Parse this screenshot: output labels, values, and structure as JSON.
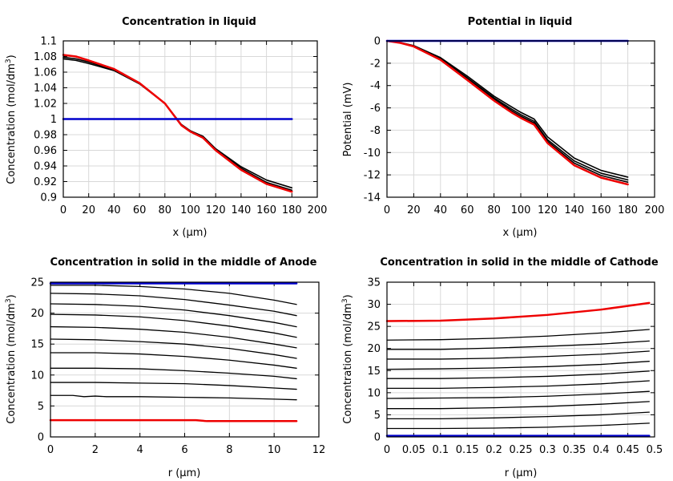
{
  "chart_data": [
    {
      "type": "line",
      "title": "Concentration in liquid",
      "xlabel": "x (µm)",
      "ylabel": "Concentration (mol/dm³)",
      "xlim": [
        0,
        200
      ],
      "ylim": [
        0.9,
        1.1
      ],
      "xticks": [
        0,
        20,
        40,
        60,
        80,
        100,
        120,
        140,
        160,
        180,
        200
      ],
      "yticks": [
        0.9,
        0.92,
        0.94,
        0.96,
        0.98,
        1,
        1.02,
        1.04,
        1.06,
        1.08,
        1.1
      ],
      "grid": true,
      "colors": {
        "initial": "#0000cc",
        "final": "#ee0000",
        "intermediate": "#000000"
      },
      "series": [
        {
          "role": "initial",
          "width": 2.5,
          "x": [
            0,
            180
          ],
          "y": [
            1.0,
            1.0
          ]
        },
        {
          "role": "intermediate",
          "width": 1.6,
          "x": [
            0,
            10,
            20,
            40,
            60,
            80,
            93,
            100,
            110,
            120,
            140,
            160,
            180
          ],
          "y": [
            1.077,
            1.075,
            1.071,
            1.062,
            1.045,
            1.02,
            0.993,
            0.985,
            0.978,
            0.962,
            0.939,
            0.922,
            0.912
          ]
        },
        {
          "role": "intermediate",
          "width": 1.6,
          "x": [
            0,
            10,
            20,
            40,
            60,
            80,
            93,
            100,
            110,
            120,
            140,
            160,
            180
          ],
          "y": [
            1.079,
            1.077,
            1.073,
            1.063,
            1.046,
            1.02,
            0.993,
            0.985,
            0.977,
            0.961,
            0.937,
            0.919,
            0.909
          ]
        },
        {
          "role": "final",
          "width": 2.5,
          "x": [
            0,
            10,
            20,
            40,
            60,
            80,
            93,
            100,
            110,
            120,
            140,
            160,
            180
          ],
          "y": [
            1.082,
            1.08,
            1.075,
            1.064,
            1.046,
            1.02,
            0.992,
            0.984,
            0.976,
            0.96,
            0.935,
            0.917,
            0.907
          ]
        }
      ]
    },
    {
      "type": "line",
      "title": "Potential in liquid",
      "xlabel": "x (µm)",
      "ylabel": "Potential (mV)",
      "xlim": [
        0,
        200
      ],
      "ylim": [
        -14,
        0
      ],
      "xticks": [
        0,
        20,
        40,
        60,
        80,
        100,
        120,
        140,
        160,
        180,
        200
      ],
      "yticks": [
        -14,
        -12,
        -10,
        -8,
        -6,
        -4,
        -2,
        0
      ],
      "grid": true,
      "colors": {
        "initial": "#0000cc",
        "final": "#ee0000",
        "intermediate": "#000000"
      },
      "series": [
        {
          "role": "initial",
          "width": 2.5,
          "x": [
            0,
            180
          ],
          "y": [
            0,
            0
          ]
        },
        {
          "role": "intermediate",
          "width": 1.6,
          "x": [
            0,
            10,
            20,
            40,
            60,
            80,
            93,
            100,
            110,
            120,
            140,
            160,
            180
          ],
          "y": [
            0,
            -0.15,
            -0.42,
            -1.5,
            -3.15,
            -4.95,
            -5.9,
            -6.4,
            -7.0,
            -8.6,
            -10.5,
            -11.6,
            -12.2
          ]
        },
        {
          "role": "intermediate",
          "width": 1.6,
          "x": [
            0,
            10,
            20,
            40,
            60,
            80,
            93,
            100,
            110,
            120,
            140,
            160,
            180
          ],
          "y": [
            0,
            -0.16,
            -0.45,
            -1.6,
            -3.3,
            -5.1,
            -6.1,
            -6.6,
            -7.2,
            -8.85,
            -10.75,
            -11.85,
            -12.45
          ]
        },
        {
          "role": "intermediate",
          "width": 1.6,
          "x": [
            0,
            10,
            20,
            40,
            60,
            80,
            93,
            100,
            110,
            120,
            140,
            160,
            180
          ],
          "y": [
            0,
            -0.17,
            -0.47,
            -1.65,
            -3.4,
            -5.2,
            -6.25,
            -6.75,
            -7.35,
            -9.0,
            -10.95,
            -12.05,
            -12.65
          ]
        },
        {
          "role": "final",
          "width": 2.5,
          "x": [
            0,
            10,
            20,
            40,
            60,
            80,
            93,
            100,
            110,
            120,
            140,
            160,
            180
          ],
          "y": [
            0,
            -0.18,
            -0.5,
            -1.7,
            -3.5,
            -5.35,
            -6.4,
            -6.9,
            -7.5,
            -9.15,
            -11.15,
            -12.25,
            -12.85
          ]
        }
      ]
    },
    {
      "type": "line",
      "title": "Concentration in solid in the middle of Anode",
      "xlabel": "r (µm)",
      "ylabel": "Concentration (mol/dm³)",
      "xlim": [
        0,
        12
      ],
      "ylim": [
        0,
        25
      ],
      "xticks": [
        0,
        2,
        4,
        6,
        8,
        10,
        12
      ],
      "yticks": [
        0,
        5,
        10,
        15,
        20,
        25
      ],
      "grid": true,
      "colors": {
        "initial": "#0000cc",
        "final": "#ee0000",
        "intermediate": "#000000"
      },
      "series": [
        {
          "role": "initial",
          "width": 2.5,
          "x": [
            0,
            11
          ],
          "y": [
            24.8,
            24.8
          ]
        },
        {
          "role": "intermediate",
          "width": 1.3,
          "x": [
            0,
            2,
            4,
            6,
            8,
            10,
            11
          ],
          "y": [
            24.5,
            24.5,
            24.3,
            23.9,
            23.2,
            22.1,
            21.4
          ]
        },
        {
          "role": "intermediate",
          "width": 1.3,
          "x": [
            0,
            2,
            4,
            6,
            8,
            10,
            11
          ],
          "y": [
            23.2,
            23.1,
            22.8,
            22.2,
            21.3,
            20.3,
            19.6
          ]
        },
        {
          "role": "intermediate",
          "width": 1.3,
          "x": [
            0,
            2,
            4,
            6,
            8,
            10,
            11
          ],
          "y": [
            21.5,
            21.4,
            21.1,
            20.5,
            19.6,
            18.5,
            17.8
          ]
        },
        {
          "role": "intermediate",
          "width": 1.3,
          "x": [
            0,
            2,
            4,
            6,
            8,
            10,
            11
          ],
          "y": [
            19.8,
            19.7,
            19.4,
            18.8,
            17.9,
            16.8,
            16.1
          ]
        },
        {
          "role": "intermediate",
          "width": 1.3,
          "x": [
            0,
            2,
            4,
            6,
            8,
            10,
            11
          ],
          "y": [
            17.8,
            17.7,
            17.4,
            16.9,
            16.1,
            15.0,
            14.4
          ]
        },
        {
          "role": "intermediate",
          "width": 1.3,
          "x": [
            0,
            2,
            4,
            6,
            8,
            10,
            11
          ],
          "y": [
            15.8,
            15.7,
            15.4,
            15.0,
            14.3,
            13.3,
            12.7
          ]
        },
        {
          "role": "intermediate",
          "width": 1.3,
          "x": [
            0,
            2,
            4,
            6,
            8,
            10,
            11
          ],
          "y": [
            13.6,
            13.6,
            13.4,
            13.0,
            12.4,
            11.6,
            11.1
          ]
        },
        {
          "role": "intermediate",
          "width": 1.3,
          "x": [
            0,
            2,
            4,
            6,
            8,
            10,
            11
          ],
          "y": [
            11.1,
            11.1,
            11.0,
            10.7,
            10.3,
            9.8,
            9.4
          ]
        },
        {
          "role": "intermediate",
          "width": 1.3,
          "x": [
            0,
            1,
            2,
            4,
            6,
            8,
            10,
            11
          ],
          "y": [
            8.8,
            8.8,
            8.8,
            8.7,
            8.6,
            8.3,
            7.9,
            7.7
          ]
        },
        {
          "role": "intermediate",
          "width": 1.3,
          "x": [
            0,
            1,
            1.5,
            2,
            2.5,
            4,
            6,
            8,
            10,
            11
          ],
          "y": [
            6.7,
            6.7,
            6.5,
            6.6,
            6.5,
            6.5,
            6.4,
            6.3,
            6.1,
            6.0
          ]
        },
        {
          "role": "final",
          "width": 2.5,
          "x": [
            0,
            2,
            4,
            6,
            6.5,
            7,
            8,
            10,
            11
          ],
          "y": [
            2.7,
            2.7,
            2.7,
            2.7,
            2.7,
            2.55,
            2.55,
            2.55,
            2.55
          ]
        }
      ]
    },
    {
      "type": "line",
      "title": "Concentration in solid in the middle of Cathode",
      "xlabel": "r (µm)",
      "ylabel": "Concentration (mol/dm³)",
      "xlim": [
        0,
        0.5
      ],
      "ylim": [
        0,
        35
      ],
      "xticks": [
        0,
        0.05,
        0.1,
        0.15,
        0.2,
        0.25,
        0.3,
        0.35,
        0.4,
        0.45,
        0.5
      ],
      "yticks": [
        0,
        5,
        10,
        15,
        20,
        25,
        30,
        35
      ],
      "grid": true,
      "colors": {
        "initial": "#0000cc",
        "final": "#ee0000",
        "intermediate": "#000000"
      },
      "series": [
        {
          "role": "initial",
          "width": 2.5,
          "x": [
            0,
            0.49
          ],
          "y": [
            0.25,
            0.25
          ]
        },
        {
          "role": "intermediate",
          "width": 1.3,
          "x": [
            0,
            0.1,
            0.2,
            0.3,
            0.4,
            0.49
          ],
          "y": [
            1.9,
            1.9,
            2.0,
            2.2,
            2.6,
            3.1
          ]
        },
        {
          "role": "intermediate",
          "width": 1.3,
          "x": [
            0,
            0.1,
            0.2,
            0.3,
            0.4,
            0.49
          ],
          "y": [
            4.1,
            4.1,
            4.3,
            4.6,
            5.0,
            5.6
          ]
        },
        {
          "role": "intermediate",
          "width": 1.3,
          "x": [
            0,
            0.1,
            0.2,
            0.3,
            0.4,
            0.49
          ],
          "y": [
            6.4,
            6.4,
            6.6,
            6.9,
            7.4,
            8.0
          ]
        },
        {
          "role": "intermediate",
          "width": 1.3,
          "x": [
            0,
            0.1,
            0.2,
            0.3,
            0.4,
            0.49
          ],
          "y": [
            8.7,
            8.8,
            8.9,
            9.2,
            9.7,
            10.3
          ]
        },
        {
          "role": "intermediate",
          "width": 1.3,
          "x": [
            0,
            0.1,
            0.2,
            0.3,
            0.4,
            0.49
          ],
          "y": [
            11.0,
            11.0,
            11.2,
            11.5,
            12.0,
            12.7
          ]
        },
        {
          "role": "intermediate",
          "width": 1.3,
          "x": [
            0,
            0.1,
            0.2,
            0.3,
            0.4,
            0.49
          ],
          "y": [
            13.2,
            13.2,
            13.4,
            13.7,
            14.2,
            14.9
          ]
        },
        {
          "role": "intermediate",
          "width": 1.3,
          "x": [
            0,
            0.1,
            0.2,
            0.3,
            0.4,
            0.49
          ],
          "y": [
            15.3,
            15.4,
            15.6,
            15.9,
            16.4,
            17.1
          ]
        },
        {
          "role": "intermediate",
          "width": 1.3,
          "x": [
            0,
            0.1,
            0.2,
            0.3,
            0.4,
            0.49
          ],
          "y": [
            17.6,
            17.6,
            17.8,
            18.2,
            18.7,
            19.4
          ]
        },
        {
          "role": "intermediate",
          "width": 1.3,
          "x": [
            0,
            0.1,
            0.2,
            0.3,
            0.4,
            0.49
          ],
          "y": [
            19.8,
            19.8,
            20.1,
            20.5,
            21.0,
            21.7
          ]
        },
        {
          "role": "intermediate",
          "width": 1.3,
          "x": [
            0,
            0.1,
            0.2,
            0.3,
            0.4,
            0.49
          ],
          "y": [
            21.9,
            22.0,
            22.3,
            22.8,
            23.5,
            24.3
          ]
        },
        {
          "role": "final",
          "width": 2.5,
          "x": [
            0,
            0.1,
            0.2,
            0.3,
            0.4,
            0.49
          ],
          "y": [
            26.2,
            26.3,
            26.8,
            27.6,
            28.8,
            30.3
          ]
        }
      ]
    }
  ]
}
